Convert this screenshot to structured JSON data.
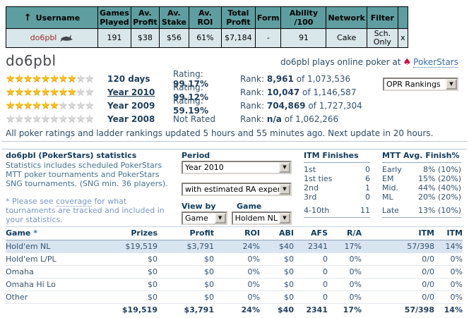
{
  "icons": {
    "sort": "↑",
    "dropdown": "▼",
    "spade": "♠",
    "star": "★",
    "remove": "x"
  },
  "top_table": {
    "headers": {
      "username": "Username",
      "games_played": "Games Played",
      "av_profit": "Av. Profit",
      "av_stake": "Av. Stake",
      "av_roi": "Av. ROI",
      "total_profit": "Total Profit",
      "form": "Form",
      "ability": "Ability /100",
      "network": "Network",
      "filter": "Filter"
    },
    "row": {
      "username": "do6pbl",
      "games_played": "191",
      "av_profit": "$38",
      "av_stake": "$56",
      "av_roi": "61%",
      "total_profit": "$7,184",
      "form": "-",
      "ability": "91",
      "network": "Cake",
      "filter": "Sch. Only"
    }
  },
  "profile": {
    "name": "do6pbl",
    "plays_prefix": "do6pbl plays online poker at",
    "site": "PokerStars",
    "rankings_dropdown": "OPR Rankings",
    "ratings": [
      {
        "label": "120 days",
        "stars": 8,
        "rating_label": "Rating:",
        "rating_value": "99.17%",
        "rank_label": "Rank:",
        "rank_value": "8,961",
        "rank_of": "of 1,073,536"
      },
      {
        "label": "Year 2010",
        "stars": 8,
        "rating_label": "Rating:",
        "rating_value": "99.12%",
        "rank_label": "Rank:",
        "rank_value": "10,047",
        "rank_of": "of 1,146,587"
      },
      {
        "label": "Year 2009",
        "stars": 6,
        "rating_label": "Rating:",
        "rating_value": "59.19%",
        "rank_label": "Rank:",
        "rank_value": "704,869",
        "rank_of": "of 1,727,304"
      },
      {
        "label": "Year 2008",
        "stars": 0,
        "rating_label": "Not Rated",
        "rating_value": "",
        "rank_label": "Rank:",
        "rank_value": "n/a",
        "rank_of": "of 1,062,266"
      }
    ],
    "update_note": "All poker ratings and ladder rankings updated 5 hours and 55 minutes ago. Next update in 20 hours."
  },
  "stats": {
    "title": "do6pbl (PokerStars) statistics",
    "description": "Statistics includes scheduled PokerStars MTT poker tournaments and PokerStars SNG tournaments. (SNG min. 36 players).",
    "note_pre": "* Please see ",
    "note_link": "coverage",
    "note_post": " for what tournaments are tracked and included in your statistics.",
    "period_label": "Period",
    "period_value": "Year 2010",
    "ra_value": "with estimated RA expen",
    "view_by_label": "View by",
    "view_by_value": "Game",
    "game_label": "Game",
    "game_value": "Holdem NL",
    "itm": {
      "title": "ITM Finishes",
      "rows": [
        {
          "label": "1st",
          "value": "0"
        },
        {
          "label": "1st ties",
          "value": "6"
        },
        {
          "label": "2nd",
          "value": "1"
        },
        {
          "label": "3rd",
          "value": "0"
        },
        {
          "label": "4-10th",
          "value": "11"
        }
      ]
    },
    "mtt": {
      "title": "MTT Avg. Finish%",
      "rows": [
        {
          "label": "Early",
          "value": "8% (10%)"
        },
        {
          "label": "EM",
          "value": "15% (20%)"
        },
        {
          "label": "Mid.",
          "value": "44% (40%)"
        },
        {
          "label": "ML",
          "value": "20% (20%)"
        },
        {
          "label": "Late",
          "value": "13% (10%)"
        }
      ]
    }
  },
  "games": {
    "headers": {
      "game": "Game",
      "star": "*",
      "prizes": "Prizes",
      "profit": "Profit",
      "roi": "ROI",
      "abi": "ABI",
      "afs": "AFS",
      "ra": "R/A",
      "itm1": "ITM",
      "itm2": "ITM"
    },
    "rows": [
      {
        "game": "Hold'em NL",
        "prizes": "$19,519",
        "profit": "$3,791",
        "roi": "24%",
        "abi": "$40",
        "afs": "2341",
        "ra": "17%",
        "itm1": "57/398",
        "itm2": "14%"
      },
      {
        "game": "Hold'em L/PL",
        "prizes": "$0",
        "profit": "$0",
        "roi": "0%",
        "abi": "$0",
        "afs": "0",
        "ra": "0%",
        "itm1": "0/0",
        "itm2": "0%"
      },
      {
        "game": "Omaha",
        "prizes": "$0",
        "profit": "$0",
        "roi": "0%",
        "abi": "$0",
        "afs": "0",
        "ra": "0%",
        "itm1": "0/0",
        "itm2": "0%"
      },
      {
        "game": "Omaha Hi Lo",
        "prizes": "$0",
        "profit": "$0",
        "roi": "0%",
        "abi": "$0",
        "afs": "0",
        "ra": "0%",
        "itm1": "0/0",
        "itm2": "0%"
      },
      {
        "game": "Other",
        "prizes": "$0",
        "profit": "$0",
        "roi": "0%",
        "abi": "$0",
        "afs": "0",
        "ra": "0%",
        "itm1": "0/0",
        "itm2": "0%"
      }
    ],
    "total": {
      "prizes": "$19,519",
      "profit": "$3,791",
      "roi": "24%",
      "abi": "$40",
      "afs": "2341",
      "ra": "17%",
      "itm1": "57/398",
      "itm2": "14%"
    }
  }
}
